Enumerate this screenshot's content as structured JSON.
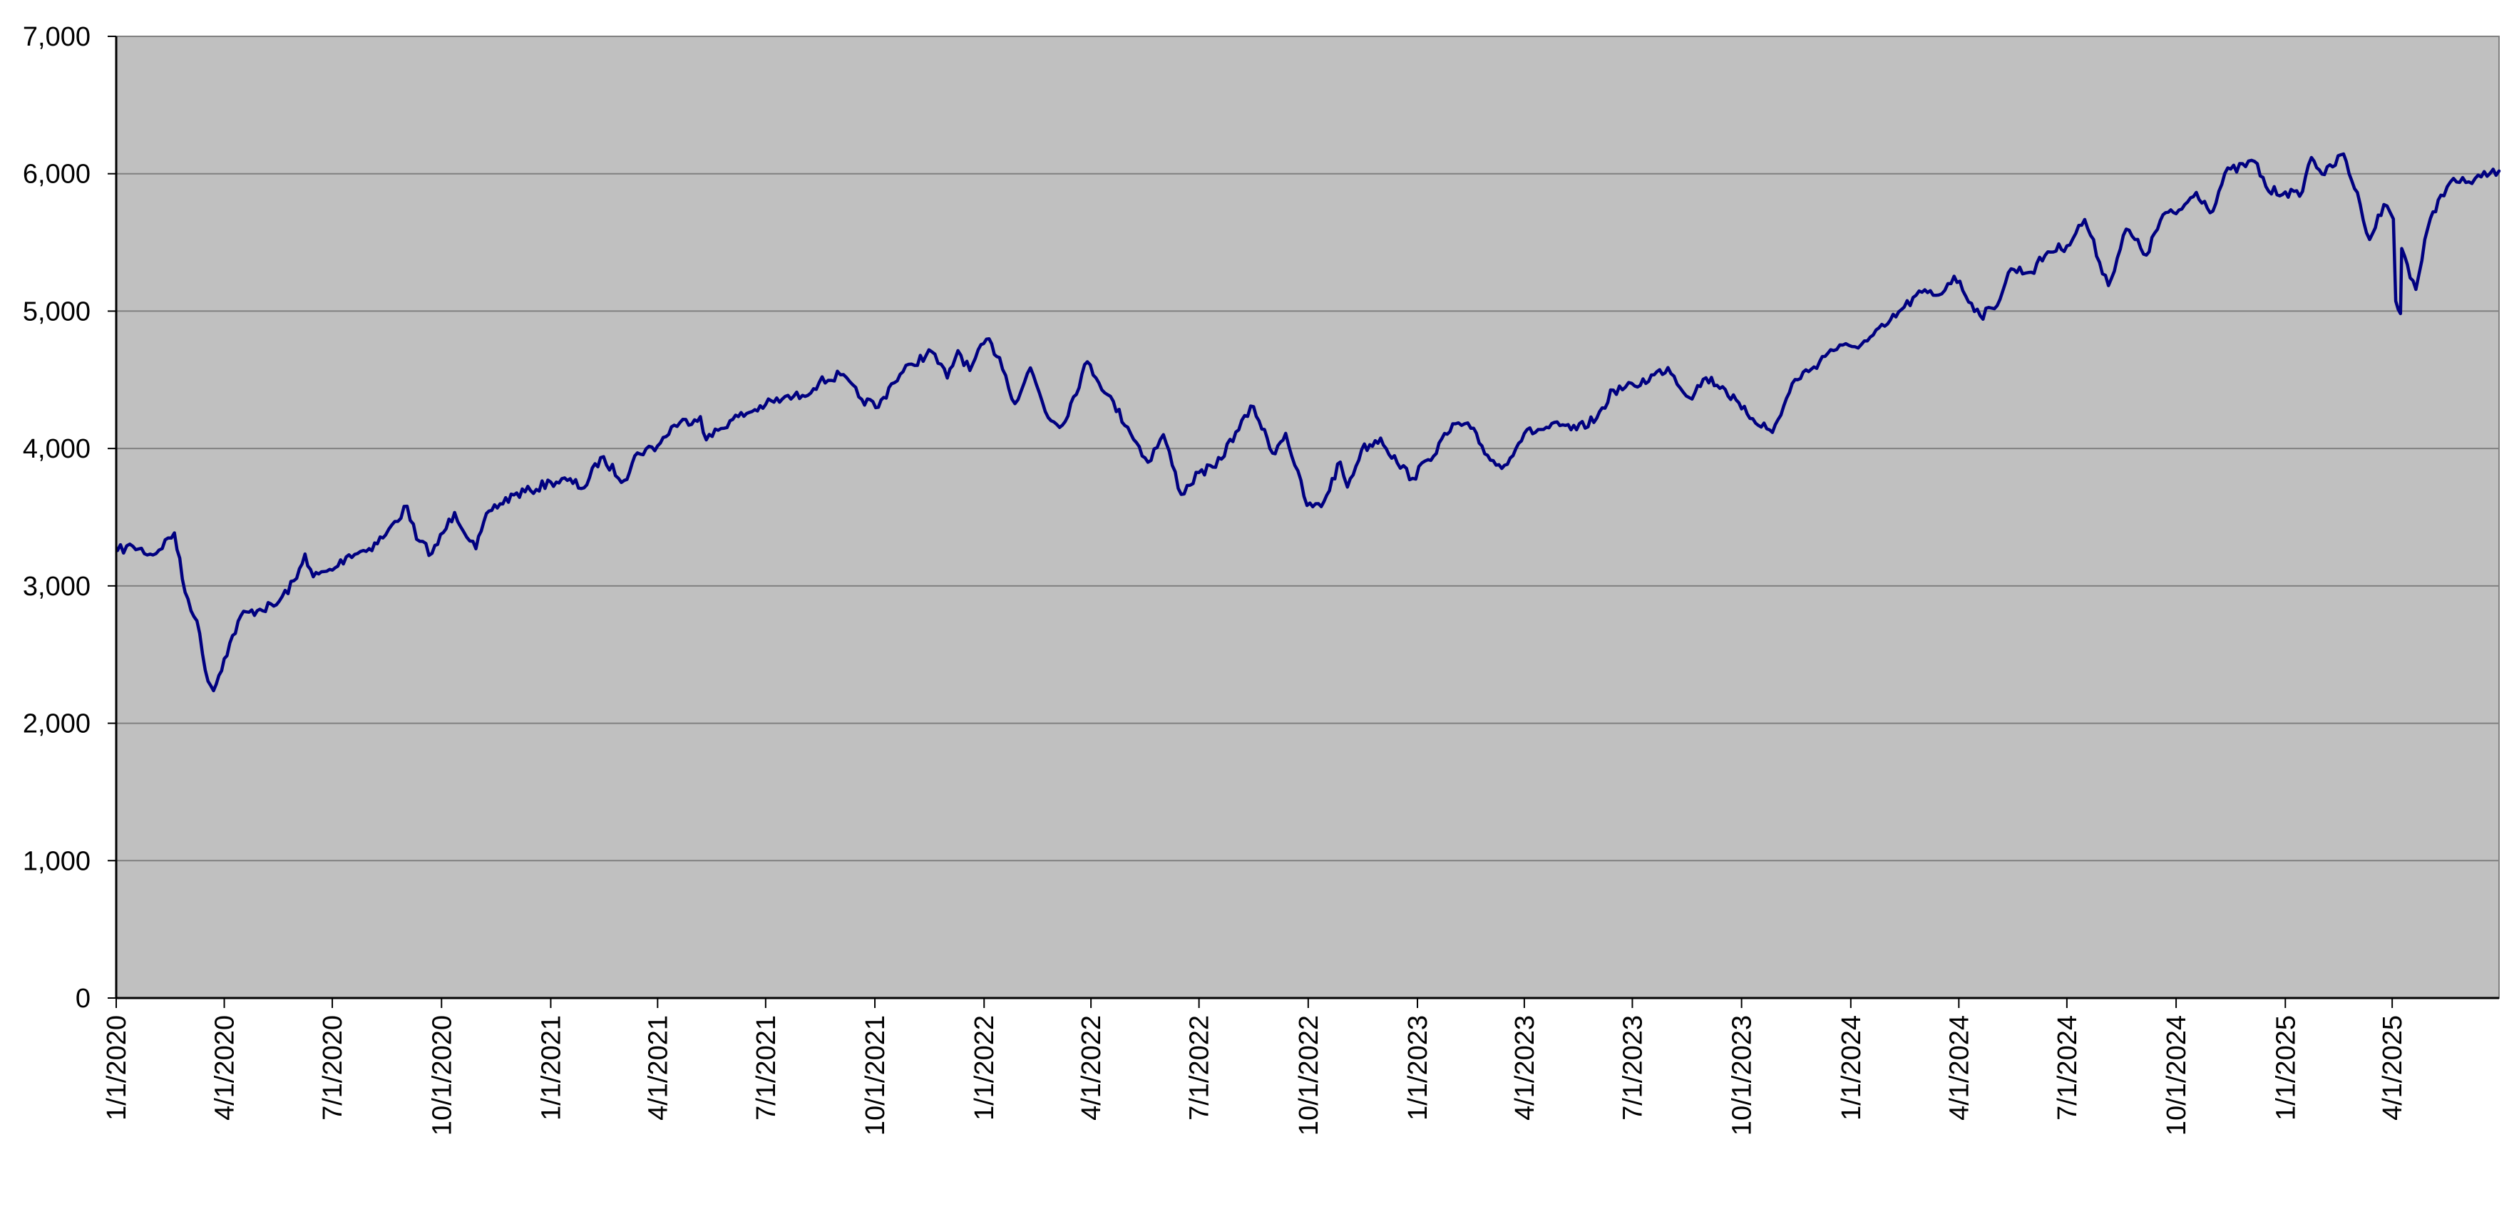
{
  "chart_data": {
    "type": "line",
    "title": "",
    "xlabel": "",
    "ylabel": "",
    "ylim": [
      0,
      7000
    ],
    "yticks": [
      0,
      1000,
      2000,
      3000,
      4000,
      5000,
      6000,
      7000
    ],
    "ytick_labels": [
      "0",
      "1,000",
      "2,000",
      "3,000",
      "4,000",
      "5,000",
      "6,000",
      "7,000"
    ],
    "xlim": [
      "2020-01-01",
      "2025-06-30"
    ],
    "xticks": [
      "2020-01-01",
      "2020-04-01",
      "2020-07-01",
      "2020-10-01",
      "2021-01-01",
      "2021-04-01",
      "2021-07-01",
      "2021-10-01",
      "2022-01-01",
      "2022-04-01",
      "2022-07-01",
      "2022-10-01",
      "2023-01-01",
      "2023-04-01",
      "2023-07-01",
      "2023-10-01",
      "2024-01-01",
      "2024-04-01",
      "2024-07-01",
      "2024-10-01",
      "2025-01-01",
      "2025-04-01"
    ],
    "xtick_labels": [
      "1/1/2020",
      "4/1/2020",
      "7/1/2020",
      "10/1/2020",
      "1/1/2021",
      "4/1/2021",
      "7/1/2021",
      "10/1/2021",
      "1/1/2022",
      "4/1/2022",
      "7/1/2022",
      "10/1/2022",
      "1/1/2023",
      "4/1/2023",
      "7/1/2023",
      "10/1/2023",
      "1/1/2024",
      "4/1/2024",
      "7/1/2024",
      "10/1/2024",
      "1/1/2025",
      "4/1/2025"
    ],
    "grid": "horizontal",
    "legend": "none",
    "colors": {
      "plot_background": "#c0c0c0",
      "line": "#000080",
      "grid": "#808080",
      "axis": "#000000"
    },
    "series": [
      {
        "points": [
          [
            "2020-01-02",
            3257
          ],
          [
            "2020-01-15",
            3289
          ],
          [
            "2020-02-01",
            3225
          ],
          [
            "2020-02-19",
            3386
          ],
          [
            "2020-02-28",
            2954
          ],
          [
            "2020-03-09",
            2746
          ],
          [
            "2020-03-16",
            2386
          ],
          [
            "2020-03-23",
            2237
          ],
          [
            "2020-04-01",
            2470
          ],
          [
            "2020-04-15",
            2783
          ],
          [
            "2020-05-01",
            2830
          ],
          [
            "2020-05-15",
            2863
          ],
          [
            "2020-06-01",
            3055
          ],
          [
            "2020-06-08",
            3232
          ],
          [
            "2020-06-15",
            3066
          ],
          [
            "2020-07-01",
            3115
          ],
          [
            "2020-07-15",
            3226
          ],
          [
            "2020-08-01",
            3271
          ],
          [
            "2020-08-15",
            3372
          ],
          [
            "2020-09-02",
            3580
          ],
          [
            "2020-09-10",
            3339
          ],
          [
            "2020-09-23",
            3237
          ],
          [
            "2020-10-12",
            3534
          ],
          [
            "2020-10-30",
            3270
          ],
          [
            "2020-11-10",
            3545
          ],
          [
            "2020-12-01",
            3662
          ],
          [
            "2020-12-15",
            3694
          ],
          [
            "2021-01-01",
            3756
          ],
          [
            "2021-01-15",
            3768
          ],
          [
            "2021-01-29",
            3714
          ],
          [
            "2021-02-12",
            3934
          ],
          [
            "2021-03-04",
            3768
          ],
          [
            "2021-03-15",
            3968
          ],
          [
            "2021-04-01",
            4019
          ],
          [
            "2021-04-15",
            4170
          ],
          [
            "2021-05-07",
            4232
          ],
          [
            "2021-05-12",
            4063
          ],
          [
            "2021-06-01",
            4202
          ],
          [
            "2021-06-15",
            4255
          ],
          [
            "2021-07-01",
            4320
          ],
          [
            "2021-07-15",
            4360
          ],
          [
            "2021-08-01",
            4387
          ],
          [
            "2021-08-15",
            4479
          ],
          [
            "2021-09-02",
            4537
          ],
          [
            "2021-09-20",
            4358
          ],
          [
            "2021-10-04",
            4300
          ],
          [
            "2021-10-15",
            4471
          ],
          [
            "2021-11-01",
            4614
          ],
          [
            "2021-11-18",
            4704
          ],
          [
            "2021-12-01",
            4513
          ],
          [
            "2021-12-10",
            4712
          ],
          [
            "2021-12-20",
            4568
          ],
          [
            "2022-01-03",
            4796
          ],
          [
            "2022-01-14",
            4662
          ],
          [
            "2022-01-27",
            4326
          ],
          [
            "2022-02-09",
            4587
          ],
          [
            "2022-02-24",
            4225
          ],
          [
            "2022-03-08",
            4170
          ],
          [
            "2022-03-29",
            4631
          ],
          [
            "2022-04-15",
            4392
          ],
          [
            "2022-05-02",
            4155
          ],
          [
            "2022-05-19",
            3900
          ],
          [
            "2022-06-01",
            4101
          ],
          [
            "2022-06-16",
            3666
          ],
          [
            "2022-07-01",
            3825
          ],
          [
            "2022-07-15",
            3863
          ],
          [
            "2022-08-01",
            4119
          ],
          [
            "2022-08-16",
            4305
          ],
          [
            "2022-09-01",
            3966
          ],
          [
            "2022-09-12",
            4110
          ],
          [
            "2022-09-30",
            3585
          ],
          [
            "2022-10-12",
            3577
          ],
          [
            "2022-10-28",
            3901
          ],
          [
            "2022-11-03",
            3719
          ],
          [
            "2022-11-15",
            3992
          ],
          [
            "2022-12-01",
            4076
          ],
          [
            "2022-12-15",
            3895
          ],
          [
            "2022-12-28",
            3783
          ],
          [
            "2023-01-10",
            3919
          ],
          [
            "2023-02-02",
            4180
          ],
          [
            "2023-02-15",
            4147
          ],
          [
            "2023-03-01",
            3951
          ],
          [
            "2023-03-13",
            3855
          ],
          [
            "2023-04-01",
            4109
          ],
          [
            "2023-04-15",
            4138
          ],
          [
            "2023-05-01",
            4167
          ],
          [
            "2023-05-15",
            4136
          ],
          [
            "2023-06-01",
            4221
          ],
          [
            "2023-06-15",
            4425
          ],
          [
            "2023-07-03",
            4455
          ],
          [
            "2023-07-31",
            4589
          ],
          [
            "2023-08-18",
            4370
          ],
          [
            "2023-09-01",
            4515
          ],
          [
            "2023-09-15",
            4450
          ],
          [
            "2023-10-01",
            4288
          ],
          [
            "2023-10-27",
            4117
          ],
          [
            "2023-11-15",
            4502
          ],
          [
            "2023-12-01",
            4594
          ],
          [
            "2023-12-15",
            4719
          ],
          [
            "2024-01-02",
            4742
          ],
          [
            "2024-01-15",
            4783
          ],
          [
            "2024-02-01",
            4906
          ],
          [
            "2024-02-15",
            5029
          ],
          [
            "2024-03-01",
            5137
          ],
          [
            "2024-03-15",
            5117
          ],
          [
            "2024-03-28",
            5254
          ],
          [
            "2024-04-19",
            4967
          ],
          [
            "2024-05-01",
            5018
          ],
          [
            "2024-05-15",
            5308
          ],
          [
            "2024-06-01",
            5283
          ],
          [
            "2024-06-15",
            5432
          ],
          [
            "2024-07-01",
            5475
          ],
          [
            "2024-07-16",
            5667
          ],
          [
            "2024-08-05",
            5186
          ],
          [
            "2024-08-20",
            5597
          ],
          [
            "2024-09-06",
            5408
          ],
          [
            "2024-09-20",
            5702
          ],
          [
            "2024-10-01",
            5709
          ],
          [
            "2024-10-18",
            5864
          ],
          [
            "2024-11-01",
            5728
          ],
          [
            "2024-11-11",
            6001
          ],
          [
            "2024-12-06",
            6090
          ],
          [
            "2024-12-18",
            5872
          ],
          [
            "2025-01-01",
            5868
          ],
          [
            "2025-01-13",
            5836
          ],
          [
            "2025-01-23",
            6118
          ],
          [
            "2025-02-03",
            5994
          ],
          [
            "2025-02-19",
            6144
          ],
          [
            "2025-03-05",
            5778
          ],
          [
            "2025-03-13",
            5521
          ],
          [
            "2025-03-25",
            5776
          ],
          [
            "2025-04-02",
            5671
          ],
          [
            "2025-04-04",
            5074
          ],
          [
            "2025-04-08",
            4982
          ],
          [
            "2025-04-09",
            5456
          ],
          [
            "2025-04-21",
            5158
          ],
          [
            "2025-05-01",
            5604
          ],
          [
            "2025-05-12",
            5844
          ],
          [
            "2025-05-20",
            5940
          ],
          [
            "2025-06-02",
            5936
          ],
          [
            "2025-06-15",
            5977
          ],
          [
            "2025-06-30",
            6020
          ]
        ]
      }
    ]
  }
}
